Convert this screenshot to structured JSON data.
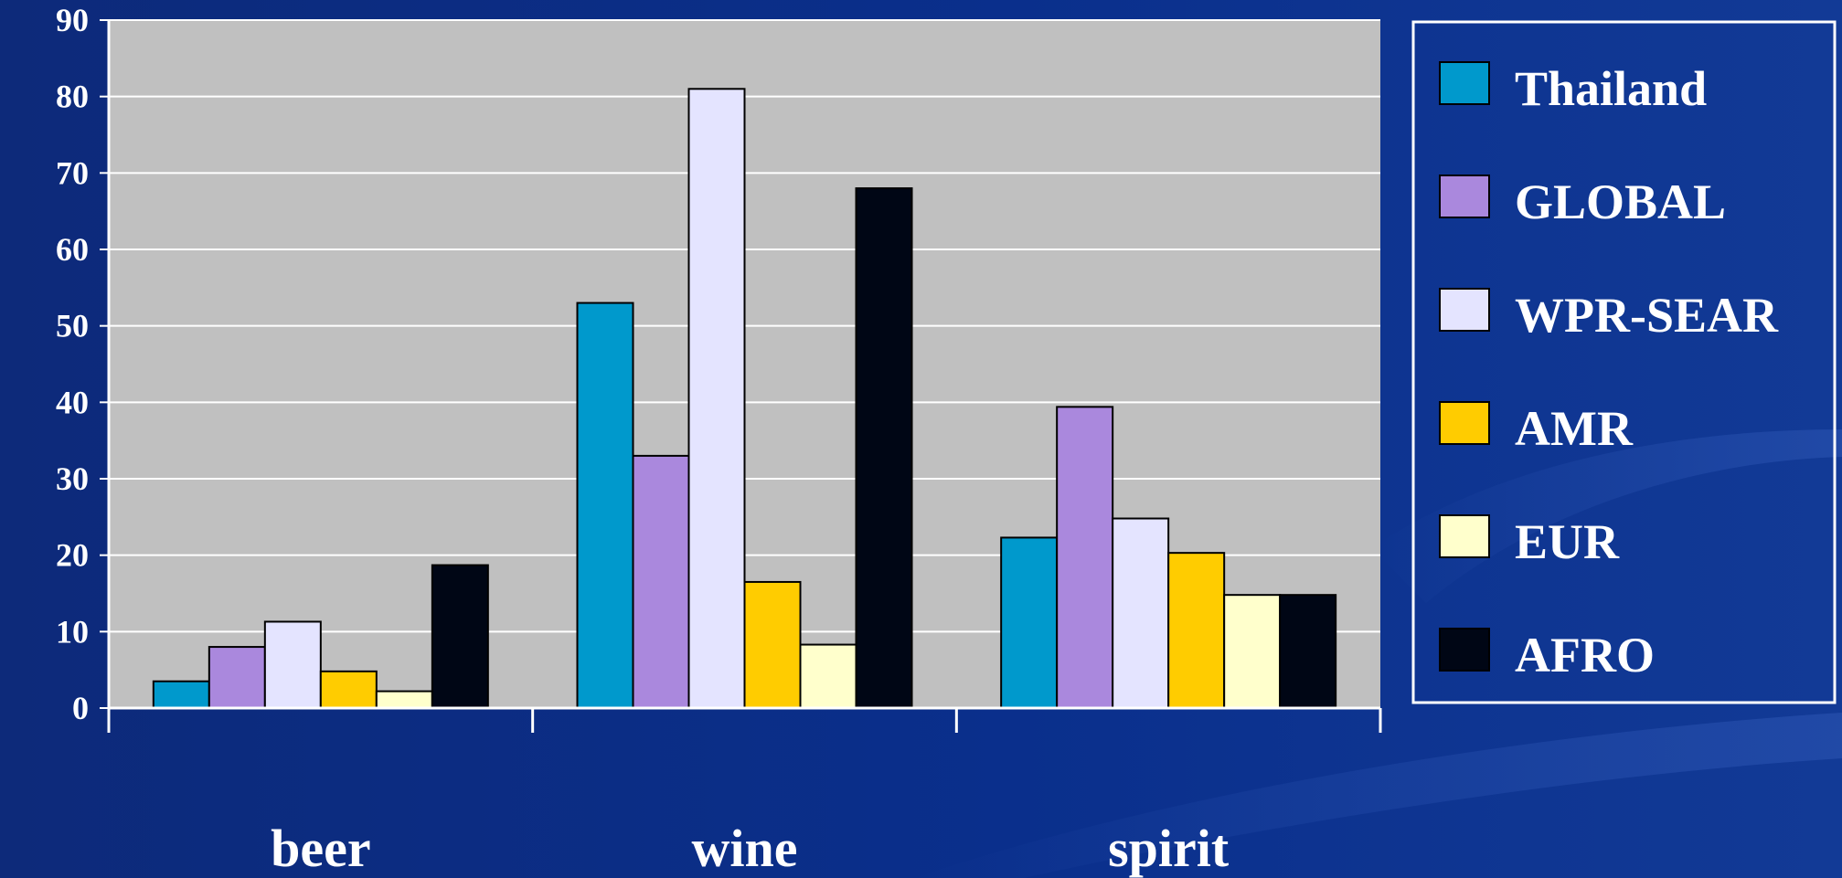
{
  "chart_data": {
    "type": "bar",
    "categories": [
      "beer",
      "wine",
      "spirit"
    ],
    "ylim": [
      0,
      90
    ],
    "y_ticks": [
      0,
      10,
      20,
      30,
      40,
      50,
      60,
      70,
      80,
      90
    ],
    "grid": true,
    "legend_position": "right",
    "plot_background": "#c0c0c0",
    "series": [
      {
        "name": "Thailand",
        "color": "#0099cc",
        "values": [
          3.5,
          53,
          22.3
        ]
      },
      {
        "name": "GLOBAL",
        "color": "#aa88dd",
        "values": [
          8,
          33,
          39.4
        ]
      },
      {
        "name": "WPR-SEAR",
        "color": "#e4e4ff",
        "values": [
          11.3,
          81,
          24.8
        ]
      },
      {
        "name": "AMR",
        "color": "#ffcc00",
        "values": [
          4.8,
          16.5,
          20.3
        ]
      },
      {
        "name": "EUR",
        "color": "#ffffcc",
        "values": [
          2.2,
          8.3,
          14.8
        ]
      },
      {
        "name": "AFRO",
        "color": "#000615",
        "values": [
          18.7,
          68,
          14.8
        ]
      }
    ]
  }
}
